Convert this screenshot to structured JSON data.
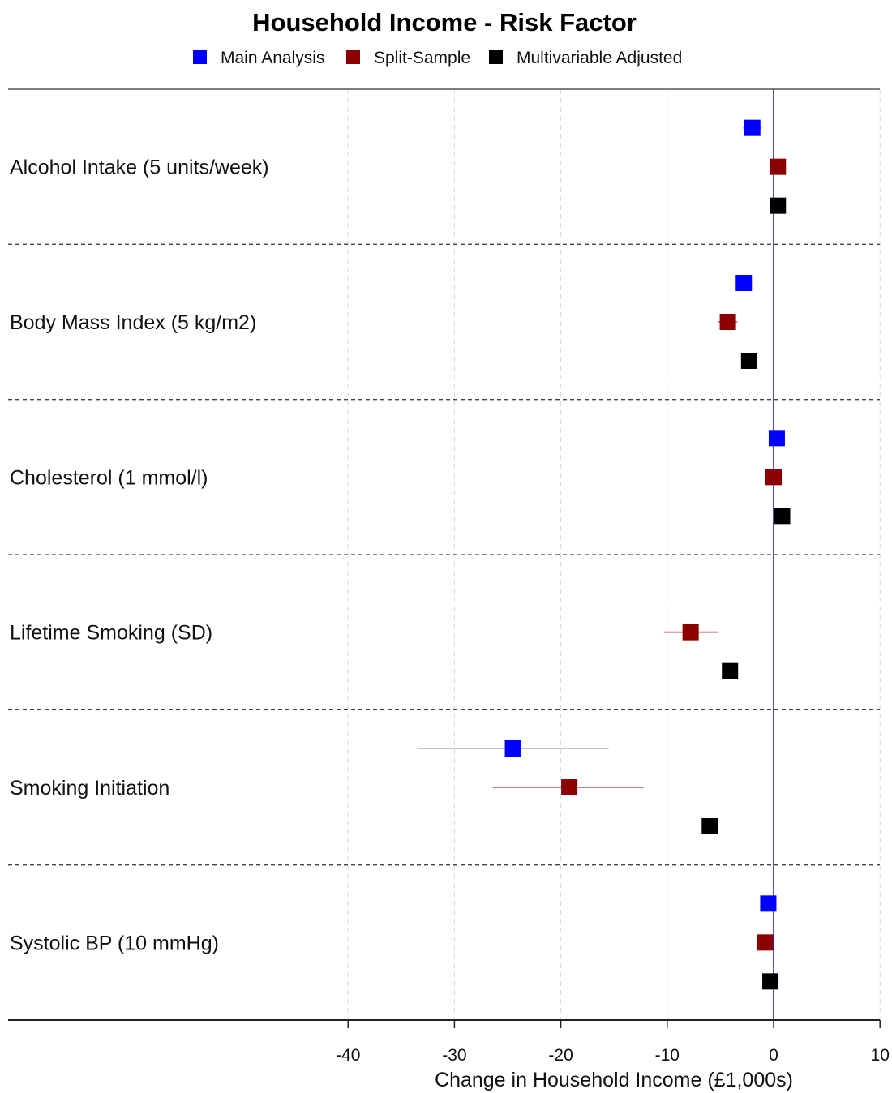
{
  "chart_data": {
    "type": "scatter",
    "title": "Household Income - Risk Factor",
    "xlabel": "Change in Household Income (£1,000s)",
    "ylabel": "",
    "xlim": [
      -50,
      10
    ],
    "xticks": [
      -40,
      -30,
      -20,
      -10,
      0,
      10
    ],
    "tick_labels": [
      "-40",
      "-30",
      "-20",
      "-10",
      "0",
      "10"
    ],
    "reference_line": 0,
    "grid": true,
    "legend_position": "top",
    "categories": [
      "Alcohol Intake (5 units/week)",
      "Body Mass Index (5 kg/m2)",
      "Cholesterol (1 mmol/l)",
      "Lifetime Smoking (SD)",
      "Smoking Initiation",
      "Systolic BP (10 mmHg)"
    ],
    "series": [
      {
        "name": "Main Analysis",
        "color": "#0000ff",
        "ci_color": "#bbbbbb",
        "points": [
          {
            "est": -2.0,
            "lo": -2.9,
            "hi": -1.1
          },
          {
            "est": -2.8,
            "lo": -3.5,
            "hi": -2.1
          },
          {
            "est": 0.3,
            "lo": -0.2,
            "hi": 0.8
          },
          null,
          {
            "est": -24.5,
            "lo": -33.5,
            "hi": -15.5
          },
          {
            "est": -0.5,
            "lo": -1.0,
            "hi": 0.0
          }
        ]
      },
      {
        "name": "Split-Sample",
        "color": "#8b0000",
        "ci_color": "#c87070",
        "points": [
          {
            "est": 0.4,
            "lo": -0.2,
            "hi": 1.0
          },
          {
            "est": -4.3,
            "lo": -5.2,
            "hi": -3.4
          },
          {
            "est": 0.0,
            "lo": -0.6,
            "hi": 0.6
          },
          {
            "est": -7.8,
            "lo": -10.3,
            "hi": -5.2
          },
          {
            "est": -19.2,
            "lo": -26.4,
            "hi": -12.2
          },
          {
            "est": -0.8,
            "lo": -1.4,
            "hi": -0.2
          }
        ]
      },
      {
        "name": "Multivariable Adjusted",
        "color": "#000000",
        "ci_color": "#444444",
        "points": [
          {
            "est": 0.4,
            "lo": 0.0,
            "hi": 0.8
          },
          {
            "est": -2.3,
            "lo": -2.7,
            "hi": -1.9
          },
          {
            "est": 0.8,
            "lo": 0.4,
            "hi": 1.2
          },
          {
            "est": -4.1,
            "lo": -4.5,
            "hi": -3.7
          },
          {
            "est": -6.0,
            "lo": -6.4,
            "hi": -5.6
          },
          {
            "est": -0.3,
            "lo": -0.7,
            "hi": 0.1
          }
        ]
      }
    ]
  }
}
